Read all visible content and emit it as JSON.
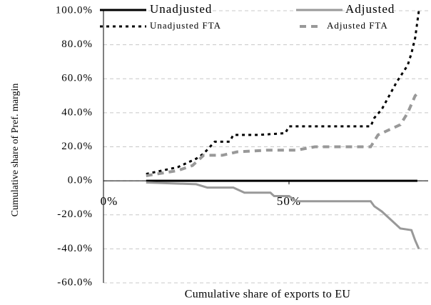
{
  "chart_data": {
    "type": "line",
    "xlabel": "Cumulative share of exports to EU",
    "ylabel": "Cumulative share of Pref. margin",
    "xlim": [
      0,
      87.5
    ],
    "xticks": [
      {
        "value": 0,
        "label": "0%"
      },
      {
        "value": 50,
        "label": "50%"
      }
    ],
    "ylim": [
      -60,
      100
    ],
    "yticks": [
      {
        "value": -60,
        "label": "-60.0%"
      },
      {
        "value": -40,
        "label": "-40.0%"
      },
      {
        "value": -20,
        "label": "-20.0%"
      },
      {
        "value": 0,
        "label": "0.0%"
      },
      {
        "value": 20,
        "label": "20.0%"
      },
      {
        "value": 40,
        "label": "40.0%"
      },
      {
        "value": 60,
        "label": "60.0%"
      },
      {
        "value": 80,
        "label": "80.0%"
      },
      {
        "value": 100,
        "label": "100.0%"
      }
    ],
    "grid": true,
    "series": [
      {
        "name": "Unadjusted",
        "color": "#000000",
        "dash": "solid",
        "x": [
          11.5,
          84.6
        ],
        "values": [
          0,
          0
        ]
      },
      {
        "name": "Adjusted",
        "color": "#999999",
        "dash": "solid",
        "x": [
          11.5,
          25,
          28,
          35,
          38,
          45,
          46,
          50,
          52,
          72,
          73,
          75,
          77,
          78,
          80,
          83,
          84,
          85
        ],
        "values": [
          -1,
          -2,
          -4,
          -4,
          -7,
          -7,
          -9,
          -9,
          -12,
          -12,
          -15,
          -18,
          -22,
          -24,
          -28,
          -29,
          -35,
          -40
        ]
      },
      {
        "name": "Unadjusted FTA",
        "color": "#000000",
        "dash": "dashed",
        "x": [
          11.5,
          20,
          25,
          27,
          30,
          34,
          35,
          42,
          49,
          50,
          72,
          73,
          75,
          77,
          79,
          82,
          83,
          84,
          85
        ],
        "values": [
          4,
          8,
          13,
          16,
          23,
          23,
          27,
          27,
          28,
          32,
          32,
          37,
          42,
          50,
          58,
          68,
          75,
          84,
          100
        ]
      },
      {
        "name": "Adjusted FTA",
        "color": "#999999",
        "dash": "dashed",
        "x": [
          11.5,
          20,
          24,
          27,
          32,
          36,
          44,
          52,
          57,
          72,
          74,
          77,
          80,
          82,
          84,
          85
        ],
        "values": [
          3,
          6,
          9,
          15,
          15,
          17,
          18,
          18,
          20,
          20,
          27,
          30,
          33,
          40,
          50,
          52
        ]
      }
    ]
  }
}
